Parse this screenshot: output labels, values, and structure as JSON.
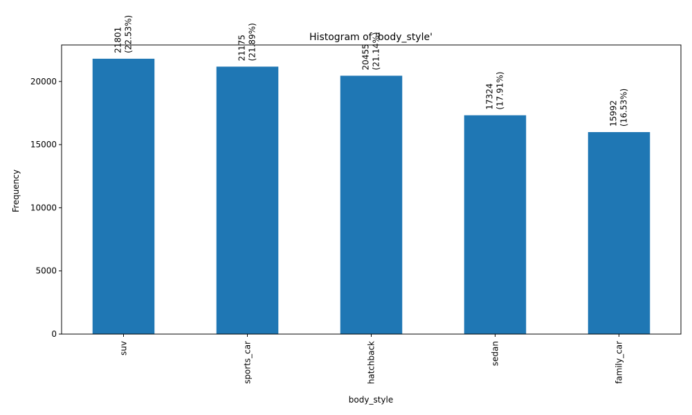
{
  "chart_data": {
    "type": "bar",
    "title": "Histogram of 'body_style'",
    "xlabel": "body_style",
    "ylabel": "Frequency",
    "categories": [
      "suv",
      "sports_car",
      "hatchback",
      "sedan",
      "family_car"
    ],
    "values": [
      21801,
      21175,
      20455,
      17324,
      15992
    ],
    "percent_labels": [
      "(22.53%)",
      "(21.89%)",
      "(21.14%)",
      "(17.91%)",
      "(16.53%)"
    ],
    "ylim": [
      0,
      22891
    ],
    "yticks": [
      0,
      5000,
      10000,
      15000,
      20000
    ],
    "bar_color": "#1f77b4",
    "grid": false,
    "legend": "none"
  }
}
